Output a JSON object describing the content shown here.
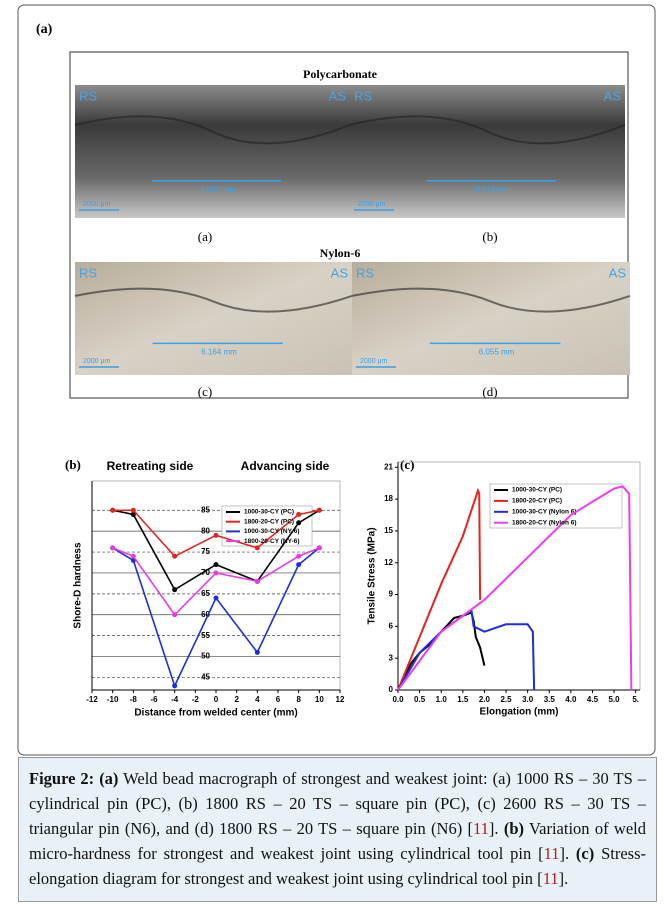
{
  "panel_a": {
    "label": "(a)",
    "group1_title": "Polycarbonate",
    "group2_title": "Nylon-6",
    "images": [
      {
        "label": "(a)",
        "left": "RS",
        "right": "AS",
        "measure": "7.022 mm",
        "scale": "2000 μm"
      },
      {
        "label": "(b)",
        "left": "RS",
        "right": "AS",
        "measure": "8.716 mm",
        "scale": "2000 μm"
      },
      {
        "label": "(c)",
        "left": "RS",
        "right": "AS",
        "measure": "6.164 mm",
        "scale": "2000 μm"
      },
      {
        "label": "(d)",
        "left": "RS",
        "right": "AS",
        "measure": "6.055 mm",
        "scale": "2000 μm"
      }
    ]
  },
  "chart_data": [
    {
      "type": "line",
      "label": "(b)",
      "x_label": "Distance from welded center (mm)",
      "y_label": "Shore-D hardness",
      "annotations": [
        "Retreating side",
        "Advancing side"
      ],
      "x": [
        -10,
        -8,
        -4,
        0,
        4,
        8,
        10
      ],
      "series": [
        {
          "name": "1000-30-CY (PC)",
          "color": "#000000",
          "values": [
            85,
            84,
            66,
            72,
            68,
            82,
            85
          ]
        },
        {
          "name": "1800-20-CY (PC)",
          "color": "#e8231f",
          "values": [
            85,
            85,
            74,
            79,
            76,
            84,
            85
          ]
        },
        {
          "name": "1000-30-CY (NY-6)",
          "color": "#1f2de0",
          "values": [
            76,
            73,
            43,
            64,
            51,
            72,
            76
          ]
        },
        {
          "name": "1800-20-CY (NY-6)",
          "color": "#e83be8",
          "values": [
            76,
            74,
            60,
            70,
            68,
            74,
            76
          ]
        }
      ],
      "xlim": [
        -12,
        12
      ],
      "xticks": [
        -12,
        -10,
        -8,
        -6,
        -4,
        -2,
        0,
        2,
        4,
        6,
        8,
        10,
        12
      ],
      "ylim": [
        42,
        92
      ],
      "yticks": [
        45,
        50,
        55,
        60,
        65,
        70,
        75,
        80,
        85
      ],
      "grid": true
    },
    {
      "type": "line",
      "label": "(c)",
      "x_label": "Elongation (mm)",
      "y_label": "Tensile Stress (MPa)",
      "series": [
        {
          "name": "1000-30-CY (PC)",
          "color": "#000000",
          "x": [
            0,
            0.3,
            0.5,
            0.8,
            1.0,
            1.3,
            1.5,
            1.7,
            1.75,
            1.8,
            1.9,
            2.0
          ],
          "values": [
            0,
            2.5,
            3.5,
            4.5,
            5.5,
            6.8,
            7,
            7.3,
            6.5,
            5,
            4,
            2.3
          ]
        },
        {
          "name": "1800-20-CY (PC)",
          "color": "#e8231f",
          "x": [
            0,
            0.5,
            1.0,
            1.5,
            1.85,
            1.88,
            1.9
          ],
          "values": [
            0,
            5,
            10,
            14.5,
            18.8,
            18.5,
            8.5
          ]
        },
        {
          "name": "1000-30-CY (Nylon 6)",
          "color": "#1f2de0",
          "x": [
            0,
            0.5,
            1.0,
            1.5,
            1.7,
            1.75,
            2.0,
            2.5,
            3.0,
            3.12,
            3.15
          ],
          "values": [
            0,
            3.5,
            5.5,
            7,
            7.5,
            6,
            5.5,
            6.2,
            6.2,
            5.5,
            0
          ]
        },
        {
          "name": "1800-20-CY (Nylon 6)",
          "color": "#f03cf0",
          "x": [
            0,
            1,
            2,
            3,
            4,
            5,
            5.2,
            5.35,
            5.4
          ],
          "values": [
            0,
            5.5,
            8.5,
            12.5,
            16.5,
            19,
            19.2,
            18.5,
            0
          ]
        }
      ],
      "xlim": [
        0,
        5.6
      ],
      "xticks": [
        {
          "value": 0,
          "label": "0.0"
        },
        0.5,
        {
          "value": 1,
          "label": "1.0"
        },
        1.5,
        {
          "value": 2,
          "label": "2.0"
        },
        2.5,
        {
          "value": 3,
          "label": "3.0"
        },
        3.5,
        {
          "value": 4,
          "label": "4.0"
        },
        4.5,
        {
          "value": 5,
          "label": "5.0"
        },
        {
          "value": 5.5,
          "label": "5."
        }
      ],
      "ylim": [
        0,
        21.5
      ],
      "yticks": [
        0,
        3,
        6,
        9,
        12,
        15,
        18,
        21
      ],
      "grid": false
    }
  ],
  "caption": {
    "parts": [
      "Figure 2:",
      "(a)",
      "Weld bead macrograph of strongest and weakest joint: (a) 1000 RS – 30 TS – cylindrical pin (PC), (b) 1800 RS – 20 TS – square pin (PC), (c) 2600 RS – 30 TS – triangular pin (N6), and (d) 1800 RS – 20 TS – square pin (N6) [",
      "11",
      "].",
      "(b)",
      "Variation of weld micro-hardness for strongest and weakest joint using cylindrical tool pin [",
      "11",
      "].",
      "(c)",
      "Stress-elongation diagram for strongest and weakest joint using cylindrical tool pin [",
      "11",
      "]."
    ]
  }
}
